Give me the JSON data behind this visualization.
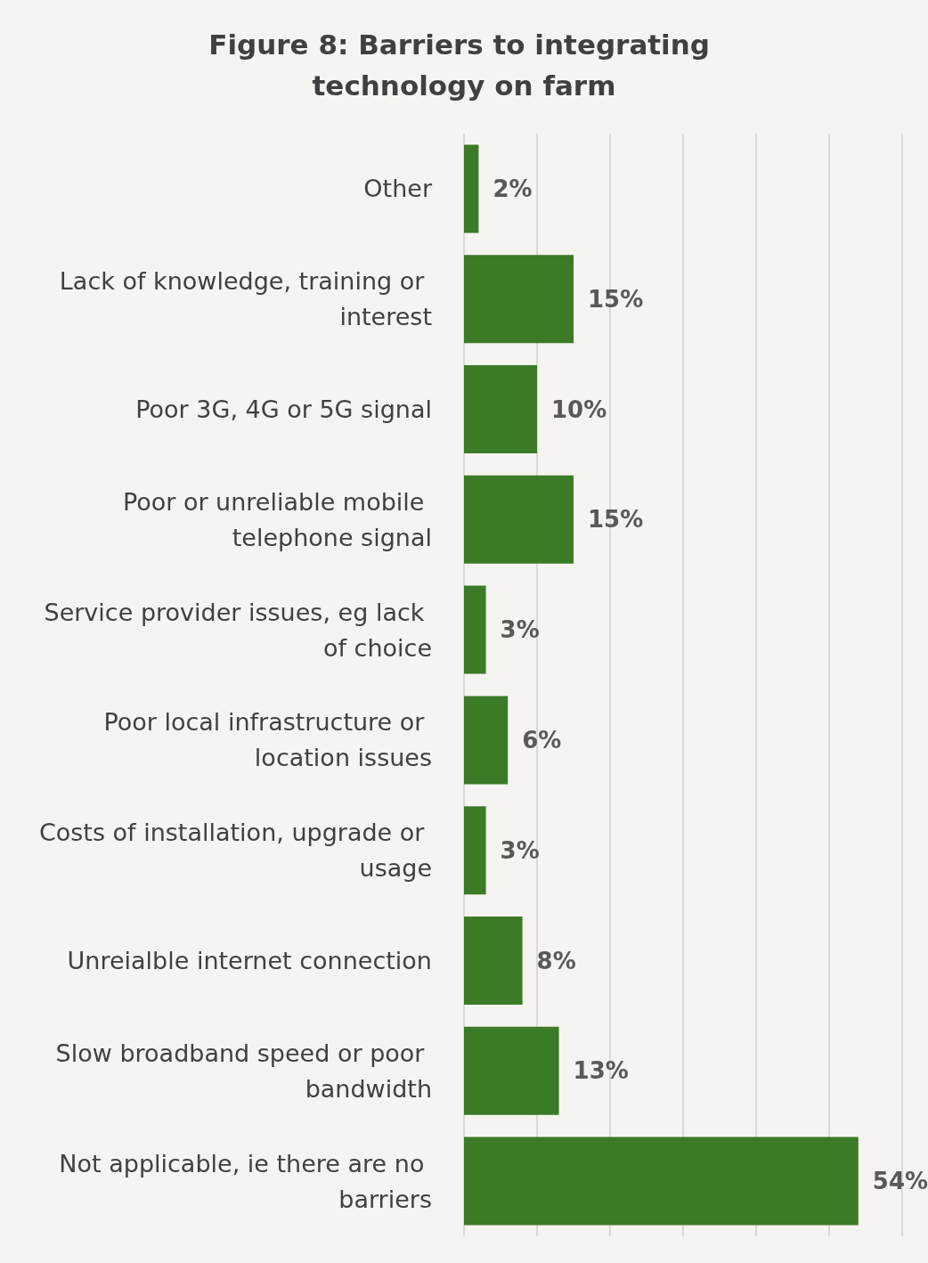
{
  "chart_data": {
    "type": "bar",
    "orientation": "horizontal",
    "title": "Figure 8: Barriers to integrating technology on farm",
    "categories": [
      "Other",
      "Lack of knowledge, training or interest",
      "Poor 3G, 4G or 5G signal",
      "Poor or unreliable mobile telephone signal",
      "Service provider issues, eg lack of choice",
      "Poor local infrastructure or location issues",
      "Costs of installation, upgrade or usage",
      "Unreialble internet connection",
      "Slow broadband speed or poor bandwidth",
      "Not applicable, ie there are no barriers"
    ],
    "values": [
      2,
      15,
      10,
      15,
      3,
      6,
      3,
      8,
      13,
      54
    ],
    "value_labels": [
      "2%",
      "15%",
      "10%",
      "15%",
      "3%",
      "6%",
      "3%",
      "8%",
      "13%",
      "54%"
    ],
    "color": "#3b7a26",
    "xlim": [
      0,
      60
    ],
    "xticks": [
      {
        "value": 0,
        "label": null
      },
      {
        "value": 10,
        "label": null
      },
      {
        "value": 20,
        "label": null
      },
      {
        "value": 30,
        "label": null
      },
      {
        "value": 40,
        "label": null
      },
      {
        "value": 50,
        "label": null
      },
      {
        "value": 60,
        "label": null
      }
    ],
    "grid": "x",
    "tick_labels": "y"
  }
}
